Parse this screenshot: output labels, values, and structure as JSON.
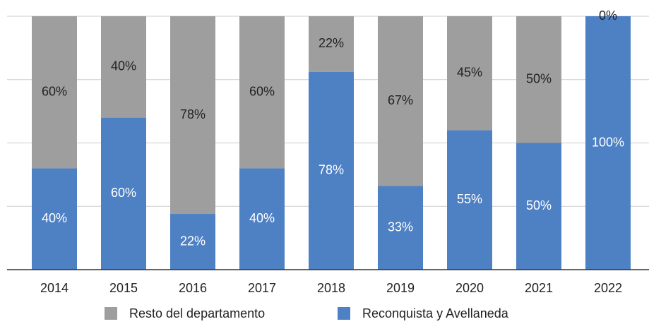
{
  "chart_data": {
    "type": "stacked_bar",
    "categories": [
      "2014",
      "2015",
      "2016",
      "2017",
      "2018",
      "2019",
      "2020",
      "2021",
      "2022"
    ],
    "series": [
      {
        "name": "Reconquista y Avellaneda",
        "color": "#4e81c4",
        "values": [
          40,
          60,
          22,
          40,
          78,
          33,
          55,
          50,
          100
        ],
        "value_labels": [
          "40%",
          "60%",
          "22%",
          "40%",
          "78%",
          "33%",
          "55%",
          "50%",
          "100%"
        ]
      },
      {
        "name": "Resto del departamento",
        "color": "#9e9e9e",
        "values": [
          60,
          40,
          78,
          60,
          22,
          67,
          45,
          50,
          0
        ],
        "value_labels": [
          "60%",
          "40%",
          "78%",
          "60%",
          "22%",
          "67%",
          "45%",
          "50%",
          "0%"
        ]
      }
    ],
    "ylim": [
      0,
      100
    ],
    "yticks": [
      0,
      25,
      50,
      75,
      100
    ],
    "grid": true
  }
}
